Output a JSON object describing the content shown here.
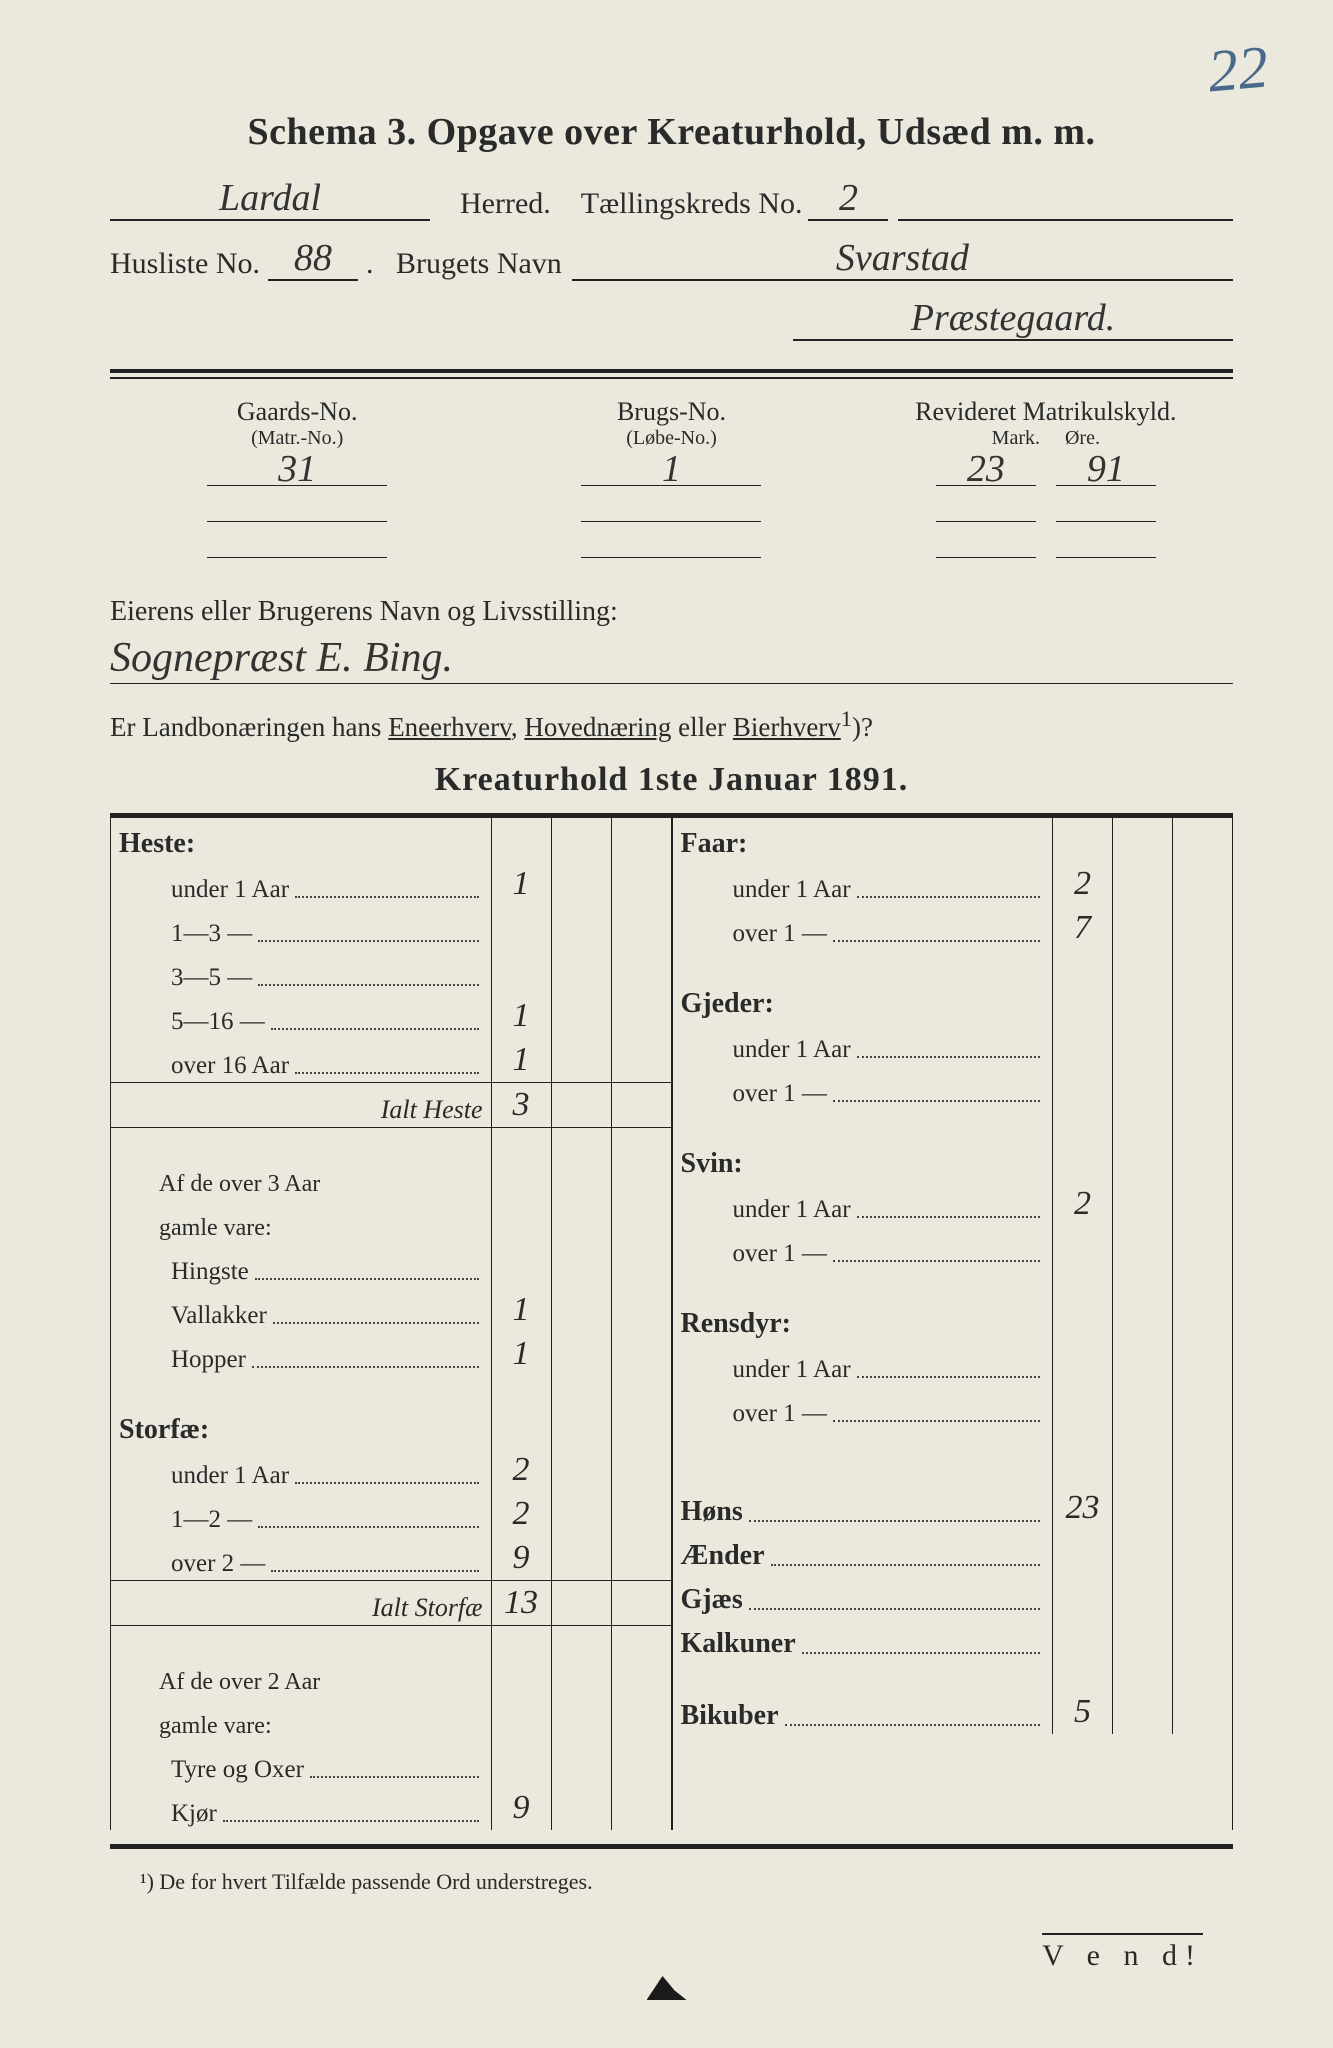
{
  "corner_number": "22",
  "title": "Schema 3.  Opgave over Kreaturhold, Udsæd m. m.",
  "header": {
    "herred_value": "Lardal",
    "herred_label": "Herred.",
    "kreds_label": "Tællingskreds No.",
    "kreds_value": "2",
    "husliste_label": "Husliste No.",
    "husliste_value": "88",
    "bruget_label": "Brugets Navn",
    "bruget_value1": "Svarstad",
    "bruget_value2": "Præstegaard."
  },
  "matrikel": {
    "gaard_label": "Gaards-No.",
    "gaard_sub": "(Matr.-No.)",
    "brug_label": "Brugs-No.",
    "brug_sub": "(Løbe-No.)",
    "rev_label": "Revideret Matrikulskyld.",
    "mark_label": "Mark.",
    "ore_label": "Øre.",
    "gaard_val": "31",
    "brug_val": "1",
    "mark_val": "23",
    "ore_val": "91"
  },
  "owner": {
    "label": "Eierens eller Brugerens Navn og Livsstilling:",
    "value": "Sognepræst E. Bing."
  },
  "question": {
    "pre": "Er Landbonæringen hans ",
    "opt1": "Eneerhverv",
    "mid1": ", ",
    "opt2": "Hovednæring",
    "mid2": " eller ",
    "opt3": "Bierhverv",
    "sup": "1",
    "post": ")?"
  },
  "mid_title": "Kreaturhold 1ste Januar 1891.",
  "left_col": [
    {
      "type": "head",
      "text": "Heste:"
    },
    {
      "type": "sub",
      "text": "under 1 Aar",
      "val": "1"
    },
    {
      "type": "sub",
      "text": "1—3    —",
      "val": ""
    },
    {
      "type": "sub",
      "text": "3—5    —",
      "val": ""
    },
    {
      "type": "sub",
      "text": "5—16  —",
      "val": "1"
    },
    {
      "type": "sub",
      "text": "over 16 Aar",
      "val": "1"
    },
    {
      "type": "hr"
    },
    {
      "type": "ital",
      "text": "Ialt Heste",
      "val": "3"
    },
    {
      "type": "hr"
    },
    {
      "type": "spacer"
    },
    {
      "type": "sub2",
      "text": "Af de over 3 Aar"
    },
    {
      "type": "sub2",
      "text": "gamle vare:"
    },
    {
      "type": "sub",
      "text": "Hingste",
      "val": ""
    },
    {
      "type": "sub",
      "text": "Vallakker",
      "val": "1"
    },
    {
      "type": "sub",
      "text": "Hopper",
      "val": "1"
    },
    {
      "type": "spacer"
    },
    {
      "type": "head",
      "text": "Storfæ:"
    },
    {
      "type": "sub",
      "text": "under 1 Aar",
      "val": "2"
    },
    {
      "type": "sub",
      "text": "1—2    —",
      "val": "2"
    },
    {
      "type": "sub",
      "text": "over 2   —",
      "val": "9"
    },
    {
      "type": "hr"
    },
    {
      "type": "ital",
      "text": "Ialt Storfæ",
      "val": "13"
    },
    {
      "type": "hr"
    },
    {
      "type": "spacer"
    },
    {
      "type": "sub2",
      "text": "Af de over 2 Aar"
    },
    {
      "type": "sub2",
      "text": "gamle vare:"
    },
    {
      "type": "sub",
      "text": "Tyre og Oxer",
      "val": ""
    },
    {
      "type": "sub",
      "text": "Kjør",
      "val": "9"
    }
  ],
  "right_col": [
    {
      "type": "head",
      "text": "Faar:"
    },
    {
      "type": "sub",
      "text": "under 1 Aar",
      "val": "2"
    },
    {
      "type": "sub",
      "text": "over 1   —",
      "val": "7"
    },
    {
      "type": "spacer"
    },
    {
      "type": "head",
      "text": "Gjeder:"
    },
    {
      "type": "sub",
      "text": "under 1 Aar",
      "val": ""
    },
    {
      "type": "sub",
      "text": "over 1   —",
      "val": ""
    },
    {
      "type": "spacer"
    },
    {
      "type": "head",
      "text": "Svin:"
    },
    {
      "type": "sub",
      "text": "under 1 Aar",
      "val": "2"
    },
    {
      "type": "sub",
      "text": "over 1   —",
      "val": ""
    },
    {
      "type": "spacer"
    },
    {
      "type": "head",
      "text": "Rensdyr:"
    },
    {
      "type": "sub",
      "text": "under 1 Aar",
      "val": ""
    },
    {
      "type": "sub",
      "text": "over 1   —",
      "val": ""
    },
    {
      "type": "spacer"
    },
    {
      "type": "spacer"
    },
    {
      "type": "plain",
      "text": "Høns",
      "val": "23"
    },
    {
      "type": "plain",
      "text": "Ænder",
      "val": ""
    },
    {
      "type": "plain",
      "text": "Gjæs",
      "val": ""
    },
    {
      "type": "plain",
      "text": "Kalkuner",
      "val": ""
    },
    {
      "type": "spacer"
    },
    {
      "type": "plain",
      "text": "Bikuber",
      "val": "5"
    }
  ],
  "footnote": "¹) De for hvert Tilfælde passende Ord understreges.",
  "vend": "V e n d!"
}
